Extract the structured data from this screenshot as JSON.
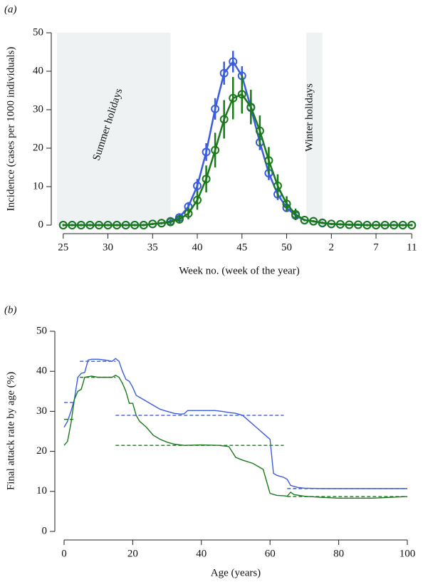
{
  "chart_data": [
    {
      "type": "line",
      "panel_label": "(a)",
      "xlabel": "Week no. (week of the year)",
      "ylabel": "Incidence (cases per 1000 individuals)",
      "x": [
        25,
        26,
        27,
        28,
        29,
        30,
        31,
        32,
        33,
        34,
        35,
        36,
        37,
        38,
        39,
        40,
        41,
        42,
        43,
        44,
        45,
        46,
        47,
        48,
        49,
        50,
        51,
        52,
        53,
        54,
        55,
        56,
        57,
        58,
        59,
        60,
        61,
        62,
        63,
        64
      ],
      "series": [
        {
          "color": "#3a5ce0",
          "markers": true,
          "values": [
            0,
            0,
            0,
            0,
            0,
            0,
            0,
            0,
            0,
            0,
            0.3,
            0.5,
            1,
            2,
            4.8,
            10.2,
            19,
            30.2,
            39.5,
            42.5,
            38.8,
            30.5,
            21.5,
            13.5,
            8,
            4.5,
            2.5,
            1.3,
            1,
            0.5,
            0.3,
            0.2,
            0.1,
            0.1,
            0,
            0,
            0,
            0,
            0,
            0
          ],
          "errors": [
            0.2,
            0.2,
            0.2,
            0.2,
            0.2,
            0.2,
            0.2,
            0.2,
            0.2,
            0.2,
            0.2,
            0.2,
            0.5,
            0.8,
            1.2,
            1.8,
            2.3,
            2.8,
            3,
            2.8,
            2.5,
            2.3,
            2,
            1.8,
            1.5,
            1,
            0.8,
            0.2,
            0.2,
            0.2,
            0.2,
            0.2,
            0.2,
            0.2,
            0.2,
            0.2,
            0.2,
            0.2,
            0.2,
            0.2
          ]
        },
        {
          "color": "#1a7a1a",
          "markers": true,
          "values": [
            0,
            0,
            0,
            0,
            0,
            0,
            0,
            0,
            0,
            0,
            0.3,
            0.5,
            0.8,
            1.5,
            3,
            6.5,
            12,
            19.5,
            27.5,
            33,
            34,
            30.7,
            24.5,
            16.8,
            10.2,
            5.5,
            2.8,
            1.3,
            1,
            0.6,
            0.3,
            0.2,
            0.1,
            0.1,
            0,
            0,
            0,
            0,
            0,
            0
          ],
          "errors": [
            0.3,
            0.3,
            0.3,
            0.3,
            0.3,
            0.3,
            0.3,
            0.3,
            0.3,
            0.3,
            0.3,
            0.3,
            0.5,
            1,
            1.5,
            2.5,
            3.5,
            4.5,
            5,
            5.5,
            5,
            4.5,
            4,
            3.5,
            3,
            2,
            1.5,
            0.3,
            0.3,
            0.3,
            0.3,
            0.3,
            0.3,
            0.3,
            0.3,
            0.3,
            0.3,
            0.3,
            0.3,
            0.3
          ]
        }
      ],
      "shaded_regions": [
        {
          "label": "Summer holidays",
          "start": 24.3,
          "end": 37
        },
        {
          "label": "Winter holidays",
          "start": 52.2,
          "end": 54
        }
      ],
      "xlim": [
        24.3,
        64.3
      ],
      "ylim": [
        0,
        50
      ],
      "xticks": [
        25,
        30,
        35,
        40,
        45,
        50,
        {
          "value": 55,
          "label": "2"
        },
        {
          "value": 60,
          "label": "7"
        },
        {
          "value": 64,
          "label": "11"
        }
      ],
      "yticks": [
        0,
        10,
        20,
        30,
        40,
        50
      ]
    },
    {
      "type": "line",
      "panel_label": "(b)",
      "xlabel": "Age (years)",
      "ylabel": "Final attack rate by age (%)",
      "series": [
        {
          "color": "#3a5ce0",
          "x": [
            0,
            1,
            2,
            3,
            4,
            5,
            6,
            7,
            8,
            10,
            12,
            14,
            15,
            16,
            17,
            18,
            19,
            20,
            21,
            22,
            24,
            26,
            28,
            30,
            32,
            34,
            35,
            36,
            40,
            44,
            46,
            48,
            50,
            52,
            54,
            56,
            58,
            60,
            61,
            62,
            64,
            65,
            66,
            68,
            70,
            75,
            80,
            90,
            100
          ],
          "values": [
            26,
            27.5,
            30,
            33,
            38.5,
            39.5,
            39.7,
            42.8,
            43,
            43,
            42.8,
            42.5,
            43.2,
            42.5,
            40,
            38,
            37.5,
            36,
            34,
            33.5,
            32.5,
            31.5,
            30.5,
            30,
            29.5,
            29.3,
            29.4,
            30.2,
            30.2,
            30.2,
            30,
            29.7,
            29.5,
            29,
            27.5,
            26,
            24.5,
            23,
            14.5,
            14,
            13.5,
            13,
            11.5,
            11,
            10.8,
            10.7,
            10.7,
            10.7,
            10.7
          ]
        },
        {
          "color": "#1a7a1a",
          "x": [
            0,
            1,
            2,
            3,
            4,
            5,
            6,
            8,
            10,
            14,
            15,
            16,
            17,
            18,
            19,
            20,
            21,
            22,
            24,
            26,
            28,
            30,
            32,
            35,
            40,
            45,
            48,
            50,
            52,
            55,
            58,
            60,
            62,
            64,
            65,
            66,
            67,
            70,
            75,
            80,
            90,
            95,
            100
          ],
          "values": [
            21.5,
            22.5,
            27,
            33,
            35,
            35.5,
            38.5,
            38.8,
            38.5,
            38.5,
            39,
            38.5,
            37,
            35,
            32,
            32,
            29,
            27.5,
            26,
            24,
            23,
            22.3,
            21.8,
            21.5,
            21.6,
            21.5,
            21.2,
            18.5,
            17.8,
            17,
            15.5,
            9.5,
            9,
            8.9,
            8.8,
            9.8,
            9.2,
            8.8,
            8.5,
            8.3,
            8.3,
            8.5,
            8.7
          ]
        },
        {
          "color": "#3a5ce0",
          "dashed": true,
          "x": [
            0,
            3.3,
            3.9,
            4.6,
            15,
            15,
            15,
            64,
            64.5,
            65,
            100
          ],
          "values": [
            32.2,
            32.2,
            null,
            42.5,
            42.5,
            null,
            29,
            29,
            null,
            10.7,
            10.7
          ]
        },
        {
          "color": "#1a7a1a",
          "dashed": true,
          "x": [
            0,
            3.3,
            3.9,
            4.6,
            15,
            15,
            15,
            64,
            64.5,
            65,
            100
          ],
          "values": [
            28,
            28,
            null,
            38.5,
            38.5,
            null,
            21.5,
            21.5,
            null,
            8.7,
            8.7
          ]
        }
      ],
      "xlim": [
        0,
        100
      ],
      "ylim": [
        0,
        50
      ],
      "xticks": [
        0,
        20,
        40,
        60,
        80,
        100
      ],
      "yticks": [
        0,
        10,
        20,
        30,
        40,
        50
      ]
    }
  ]
}
